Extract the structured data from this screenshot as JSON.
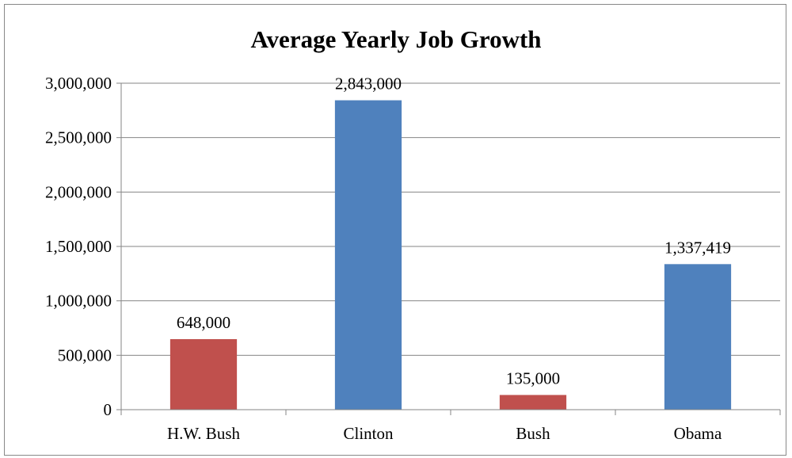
{
  "chart_data": {
    "type": "bar",
    "title": "Average Yearly Job Growth",
    "xlabel": "",
    "ylabel": "",
    "ylim": [
      0,
      3000000
    ],
    "ytick_step": 500000,
    "yticks": [
      "0",
      "500,000",
      "1,000,000",
      "1,500,000",
      "2,000,000",
      "2,500,000",
      "3,000,000"
    ],
    "categories": [
      "H.W. Bush",
      "Clinton",
      "Bush",
      "Obama"
    ],
    "values": [
      648000,
      2843000,
      135000,
      1337419
    ],
    "data_labels": [
      "648,000",
      "2,843,000",
      "135,000",
      "1,337,419"
    ],
    "bar_colors": [
      "#c0504d",
      "#4f81bd",
      "#c0504d",
      "#4f81bd"
    ],
    "grid": true,
    "legend": "none",
    "gridline_color": "#868686",
    "axis_color": "#868686"
  }
}
